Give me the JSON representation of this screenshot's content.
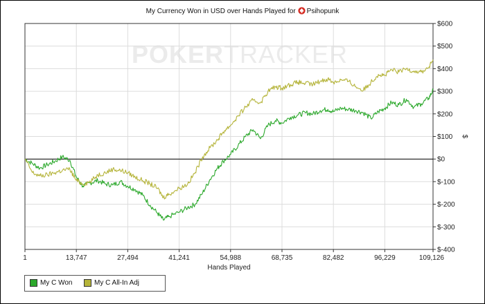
{
  "title": {
    "prefix": "My Currency Won in USD over Hands Played for",
    "player": "Psihopunk",
    "icon": "poker-spade-icon"
  },
  "watermark": {
    "bold": "POKER",
    "light": "TRACKER"
  },
  "legend": [
    {
      "label": "My C Won",
      "color": "#2ba82b"
    },
    {
      "label": "My C All-In Adj",
      "color": "#b5b43a"
    }
  ],
  "chart_data": {
    "type": "line",
    "title": "My Currency Won in USD over Hands Played for Psihopunk",
    "xlabel": "Hands Played",
    "ylabel": "$",
    "xlim": [
      1,
      109126
    ],
    "ylim": [
      -400,
      600
    ],
    "x_ticks": [
      1,
      13747,
      27494,
      41241,
      54988,
      68735,
      82482,
      96229,
      109126
    ],
    "x_tick_labels": [
      "1",
      "13,747",
      "27,494",
      "41,241",
      "54,988",
      "68,735",
      "82,482",
      "96,229",
      "109,126"
    ],
    "y_ticks": [
      -400,
      -300,
      -200,
      -100,
      0,
      100,
      200,
      300,
      400,
      500,
      600
    ],
    "y_tick_labels": [
      "$-400",
      "$-300",
      "$-200",
      "$-100",
      "$0",
      "$100",
      "$200",
      "$300",
      "$400",
      "$500",
      "$600"
    ],
    "y_axis_side": "right",
    "grid": true,
    "legend_position": "bottom-left",
    "series": [
      {
        "name": "My C Won",
        "color": "#2ba82b",
        "x": [
          1,
          2000,
          4000,
          6000,
          8000,
          10000,
          12000,
          13747,
          15500,
          17500,
          19500,
          21500,
          23500,
          25500,
          27494,
          29500,
          31500,
          33500,
          35500,
          37000,
          38500,
          41241,
          43500,
          45500,
          47500,
          49500,
          51500,
          53000,
          54988,
          57000,
          59000,
          61000,
          63000,
          65000,
          67000,
          68735,
          71000,
          73000,
          75000,
          77000,
          79000,
          81000,
          82482,
          84500,
          86500,
          88500,
          90500,
          92500,
          94500,
          96229,
          98000,
          100000,
          102000,
          104000,
          106000,
          108000,
          109126
        ],
        "y": [
          0,
          -20,
          -40,
          -25,
          -10,
          10,
          -5,
          -80,
          -120,
          -105,
          -95,
          -110,
          -115,
          -100,
          -120,
          -135,
          -160,
          -205,
          -240,
          -270,
          -255,
          -235,
          -215,
          -200,
          -150,
          -90,
          -40,
          -10,
          20,
          60,
          100,
          130,
          90,
          150,
          170,
          160,
          185,
          195,
          205,
          200,
          215,
          220,
          210,
          225,
          220,
          215,
          205,
          180,
          210,
          225,
          250,
          240,
          265,
          230,
          245,
          270,
          305
        ]
      },
      {
        "name": "My C All-In Adj",
        "color": "#b5b43a",
        "x": [
          1,
          2000,
          4000,
          6000,
          8000,
          10000,
          12000,
          13747,
          15500,
          17500,
          19500,
          21500,
          23500,
          25500,
          27494,
          29500,
          31500,
          33500,
          35500,
          37000,
          38500,
          41241,
          43500,
          45500,
          47500,
          49500,
          51500,
          53000,
          54988,
          57000,
          59000,
          61000,
          63000,
          65000,
          67000,
          68735,
          71000,
          73000,
          75000,
          77000,
          79000,
          81000,
          82482,
          84500,
          86500,
          88500,
          90500,
          92500,
          94500,
          96229,
          98000,
          100000,
          102000,
          104000,
          106000,
          108000,
          109126
        ],
        "y": [
          0,
          -60,
          -75,
          -70,
          -60,
          -50,
          -45,
          -95,
          -110,
          -100,
          -70,
          -60,
          -45,
          -50,
          -60,
          -80,
          -95,
          -110,
          -130,
          -170,
          -155,
          -130,
          -110,
          -60,
          10,
          50,
          85,
          120,
          150,
          190,
          230,
          260,
          250,
          300,
          320,
          315,
          330,
          340,
          335,
          330,
          345,
          355,
          340,
          350,
          345,
          320,
          305,
          340,
          375,
          370,
          395,
          385,
          400,
          390,
          385,
          405,
          440
        ]
      }
    ]
  }
}
